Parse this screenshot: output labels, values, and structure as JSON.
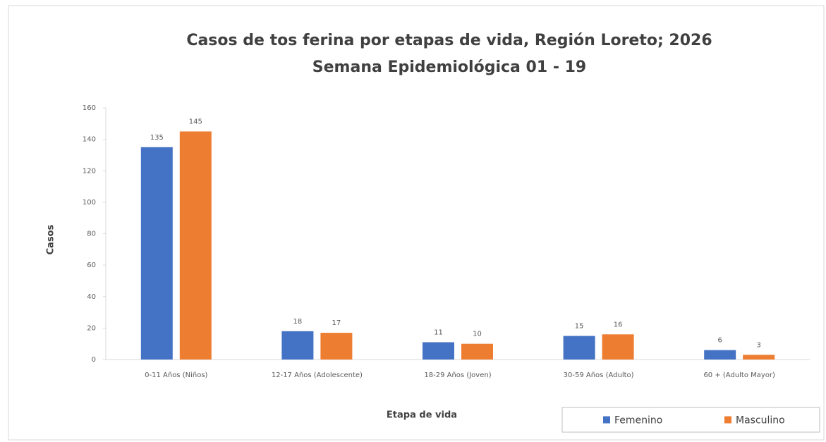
{
  "chart_data": {
    "type": "bar",
    "title": "Casos de tos ferina por etapas de vida, Región Loreto; 2026",
    "subtitle": "Semana Epidemiológica 01 - 19",
    "x_label": "Etapa de vida",
    "y_label": "Casos",
    "categories": [
      "0-11 Años (Niños)",
      "12-17 Años (Adolescente)",
      "18-29 Años (Joven)",
      "30-59 Años (Adulto)",
      "60 + (Adulto Mayor)"
    ],
    "series": [
      {
        "name": "Femenino",
        "color": "#4472c4",
        "values": [
          135,
          18,
          11,
          15,
          6
        ]
      },
      {
        "name": "Masculino",
        "color": "#ed7d31",
        "values": [
          145,
          17,
          10,
          16,
          3
        ]
      }
    ],
    "ylim": [
      0,
      160
    ],
    "yticks": [
      0,
      20,
      40,
      60,
      80,
      100,
      120,
      140,
      160
    ],
    "grid": false,
    "legend": "lower right"
  }
}
